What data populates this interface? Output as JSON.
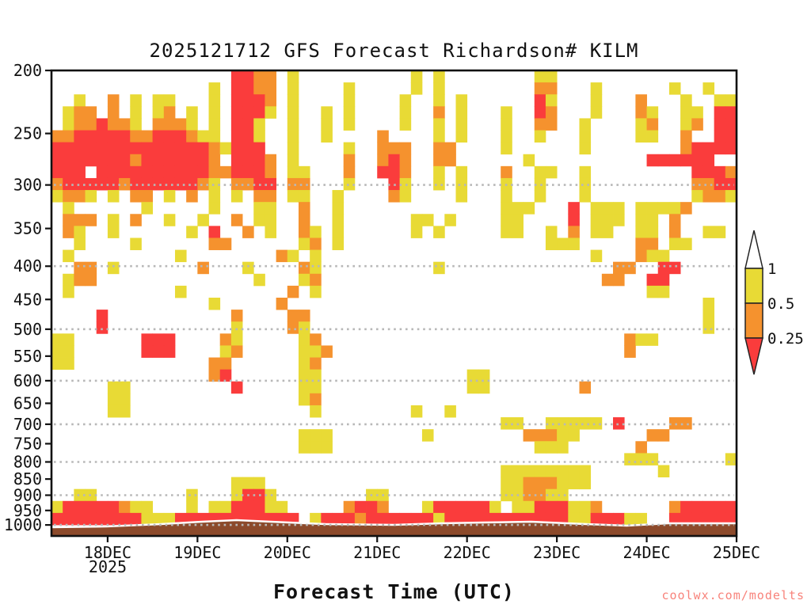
{
  "title": "2025121712 GFS Forecast Richardson# KILM",
  "x_axis": {
    "label": "Forecast Time (UTC)",
    "tick_labels": [
      "18DEC",
      "19DEC",
      "20DEC",
      "21DEC",
      "22DEC",
      "23DEC",
      "24DEC",
      "25DEC"
    ],
    "year": "2025"
  },
  "y_axis": {
    "tick_labels": [
      "200",
      "250",
      "300",
      "350",
      "400",
      "450",
      "500",
      "550",
      "600",
      "650",
      "700",
      "750",
      "800",
      "850",
      "900",
      "950",
      "1000"
    ]
  },
  "legend": {
    "tick_labels": [
      "1",
      "0.5",
      "0.25"
    ],
    "segments_top_to_bottom": [
      "white: Ri > 1",
      "yellow: 0.5 - 1",
      "orange: 0.25 - 0.5",
      "red: Ri < 0.25"
    ]
  },
  "watermark": "coolwx.com/modelts",
  "colors": {
    "red": "#fa3c3c",
    "orange": "#f5922e",
    "yellow": "#e8da35",
    "terrain_brown": "#8c4a2b",
    "watermark": "#f8837b",
    "gridline": "#b8b8b8",
    "axis": "#111111"
  },
  "chart_data": {
    "type": "heatmap",
    "title": "2025121712 GFS Forecast Richardson# KILM",
    "xlabel": "Forecast Time (UTC)",
    "x_tick_labels": [
      "18DEC",
      "19DEC",
      "20DEC",
      "21DEC",
      "22DEC",
      "23DEC",
      "24DEC",
      "25DEC"
    ],
    "x_tick_hours_from_plot_start": [
      15,
      39,
      63,
      87,
      111,
      135,
      159,
      183
    ],
    "hours_per_column": 3,
    "columns": 61,
    "y_pressure_ticks": [
      200,
      250,
      300,
      350,
      400,
      450,
      500,
      550,
      600,
      650,
      700,
      750,
      800,
      850,
      900,
      950,
      1000
    ],
    "gridline_pressures": [
      300,
      400,
      500,
      600,
      700,
      800,
      900,
      1000
    ],
    "pressure_range": [
      200,
      1000
    ],
    "value_classes": {
      "r": "Ri < 0.25",
      "o": "0.25 <= Ri < 0.5",
      "y": "0.5 <= Ri < 1",
      ".": "Ri >= 1 (unshaded)"
    },
    "grid_rows": [
      "................rroo.y..........y.y........yy..............",
      "..............y.rroo.y....y.....y.y........oo...y......y..y.",
      "..y..o.y.yy...y.rrro.y....y....y..y.y......ry...y...o...y..yy",
      ".yoo.o.y.yo.y.y.rrry.y..y.y....y..o.y...y..ro...y...oy..yy.rr",
      ".yoorooy.oooy.y.rry..y..y.y....y..y.y...y..oo..y....yo..yo.rr",
      "oorrrrroorrroyy.rry..y..y....o....y.y...y..y...y....yy..o..rr",
      "rrrrrrrrrrrrrroyrrr..y....y..ooo..oo....y......y........orrrrr",
      "rrrrrrrorrrrrro.rrro.y....o..oro..oo......y..........rrrrrr",
      "rrr.rrrrrrrrrroorrro.yy...o..rro..y.y...o..yy..y.........rrroo",
      "orrrrrorrrrrroy.oorr.oo...y...ry..y.y...y..y...y.........oorrry",
      "yooy.y.oo.y.o.y.y.oo.yy..y....oy....y...y..y...y.........yooyyy",
      ".y......y.....y...yy..o..y..............yyy...r.yyy.yyyyo...",
      ".ooo.y.o..y..y..o.yy..o..y......yy.y....yy....r.yyy.yy.o....",
      ".oy..y......y.r..o.y..oy.y......y.y.....yy..y.o.yy..yy.o..yy",
      "..y....y......oo......yo.y..................yyy.....oo.yy",
      ".y.........y........oy.y........................y...oyy",
      "..oo.y.......o...y....oy..........y...............oo..rr",
      ".yoo..............y...yo.........................oo..rr",
      ".y.........y.........o.y.............................yy",
      "..............y.....o.....................................y",
      "....r...........o....oo...................................y",
      "....r...........y....oy...................................y",
      "yy......rrr....oy.....yo...........................oyy",
      "yy......rrr....yo.....yyo..........................o..",
      "yy............oo......yo.................................",
      "..............or......yy.............yy..................",
      ".....yy.........r.....yy.............yy........o.........",
      ".....yy...............yo.................................",
      ".....yy................y........y..y.....................",
      "........................................yy..yyyyy.r....oo..",
      "......................yyy........y........oooyy......oo..",
      "......................yyy..................yyy......o..",
      "...................................................yyy......y..",
      "........................................yyyyyyyy......y..",
      "................yyy.....................yyoooyyy..........",
      "..yy........y...yrry........yy..........yyooyy..............",
      "yrrrrroyy...y.yyrrryy.....orro...yrrrrry.yyrrryyo......orrrrr",
      "rrrrrrrryyyrrrrrrrrrrr.yrrrorrrrrryrrrrrrrrrrryyrrryy..rrrrrr"
    ],
    "terrain_surface_y_profile": [
      [
        0.0,
        666
      ],
      [
        0.08,
        665
      ],
      [
        0.16,
        662
      ],
      [
        0.22,
        659
      ],
      [
        0.27,
        657
      ],
      [
        0.32,
        659
      ],
      [
        0.4,
        662
      ],
      [
        0.5,
        663
      ],
      [
        0.57,
        661
      ],
      [
        0.63,
        660
      ],
      [
        0.7,
        659
      ],
      [
        0.78,
        662
      ],
      [
        0.84,
        664
      ],
      [
        0.9,
        661
      ],
      [
        1.0,
        661
      ]
    ]
  }
}
